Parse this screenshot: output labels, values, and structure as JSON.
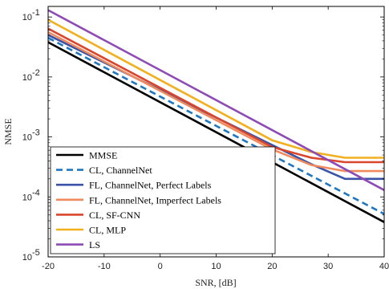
{
  "chart_data": {
    "type": "line",
    "title": "",
    "xlabel": "SNR, [dB]",
    "ylabel": "NMSE",
    "xlim": [
      -20,
      40
    ],
    "ylim": [
      1e-05,
      0.15
    ],
    "yscale": "log",
    "grid": false,
    "legend_position": "bottom-left",
    "x_ticks": [
      "-20",
      "-10",
      "0",
      "10",
      "20",
      "30",
      "40"
    ],
    "y_ticks": [
      {
        "base": "10",
        "exp": "-5"
      },
      {
        "base": "10",
        "exp": "-4"
      },
      {
        "base": "10",
        "exp": "-3"
      },
      {
        "base": "10",
        "exp": "-2"
      },
      {
        "base": "10",
        "exp": "-1"
      }
    ],
    "series": [
      {
        "name": "MMSE",
        "color": "#000000",
        "dash": "solid",
        "x": [
          -20,
          40
        ],
        "y": [
          0.038,
          3.8e-05
        ]
      },
      {
        "name": "CL, ChannelNet",
        "color": "#1f77c0",
        "dash": "dashed",
        "x": [
          -20,
          40
        ],
        "y": [
          0.045,
          5.2e-05
        ]
      },
      {
        "name": "FL, ChannelNet, Perfect Labels",
        "color": "#3a52a8",
        "dash": "solid",
        "x": [
          -20,
          27,
          33,
          40
        ],
        "y": [
          0.05,
          0.00035,
          0.0002,
          0.0002
        ]
      },
      {
        "name": "FL, ChannelNet, Imperfect Labels",
        "color": "#f08a5d",
        "dash": "solid",
        "x": [
          -20,
          20,
          27,
          33,
          40
        ],
        "y": [
          0.056,
          0.00062,
          0.00034,
          0.00027,
          0.00027
        ]
      },
      {
        "name": "CL, SF-CNN",
        "color": "#d9462b",
        "dash": "solid",
        "x": [
          -20,
          20,
          27,
          33,
          40
        ],
        "y": [
          0.064,
          0.00068,
          0.00045,
          0.00038,
          0.00038
        ]
      },
      {
        "name": "CL, MLP",
        "color": "#f2b01e",
        "dash": "solid",
        "x": [
          -20,
          20,
          27,
          33,
          40
        ],
        "y": [
          0.09,
          0.00088,
          0.00056,
          0.00045,
          0.00045
        ]
      },
      {
        "name": "LS",
        "color": "#8e4bb5",
        "dash": "solid",
        "x": [
          -20,
          40
        ],
        "y": [
          0.13,
          0.00013
        ]
      }
    ]
  }
}
